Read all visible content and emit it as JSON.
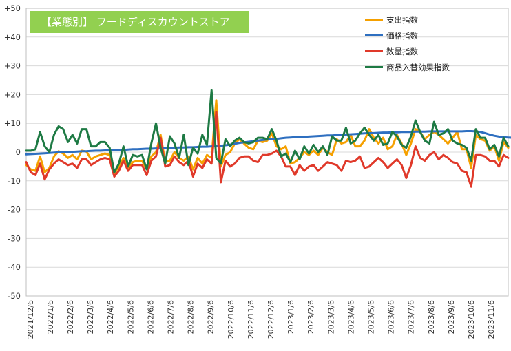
{
  "chart_data": {
    "type": "line",
    "title": "【業態別】 フードディスカウントストア",
    "ylim": [
      -50,
      50
    ],
    "y_ticks": [
      "+50",
      "+40",
      "+30",
      "+20",
      "+10",
      "0",
      "-10",
      "-20",
      "-30",
      "-40",
      "-50"
    ],
    "x_tick_labels": [
      "2021/12/6",
      "2022/1/6",
      "2022/2/6",
      "2022/3/6",
      "2022/4/6",
      "2022/5/6",
      "2022/6/6",
      "2022/7/6",
      "2022/8/6",
      "2022/9/6",
      "2022/10/6",
      "2022/11/6",
      "2022/12/6",
      "2023/1/6",
      "2023/2/6",
      "2023/3/6",
      "2023/4/6",
      "2023/5/6",
      "2023/6/6",
      "2023/7/6",
      "2023/8/6",
      "2023/9/6",
      "2023/10/6",
      "2023/11/6"
    ],
    "grid": "horizontal",
    "legend_position": "top-right",
    "series": [
      {
        "name": "支出指数",
        "color": "#f5a000",
        "values": [
          -4.5,
          -6,
          -6.5,
          -1.5,
          -7,
          -5.5,
          -1.5,
          0.3,
          -0.5,
          -2,
          -1,
          -2.5,
          0.5,
          0.2,
          -2.5,
          -1.5,
          -1,
          -0.5,
          -1,
          -7.5,
          -5,
          -2,
          -5.5,
          -3.5,
          -3,
          -3,
          -6,
          -1.5,
          0,
          6,
          -3.5,
          -3,
          0,
          -2,
          -3,
          -1.5,
          -6,
          -2,
          -4,
          -1,
          -2,
          18,
          -5,
          -1,
          0,
          3,
          4.5,
          3,
          1.5,
          1,
          4,
          3.5,
          4,
          6.5,
          2,
          1,
          2,
          -4,
          -3.5,
          -2,
          0,
          -1,
          0.5,
          -1,
          1.5,
          0,
          -1,
          4.5,
          3,
          3.5,
          6,
          2,
          2,
          4,
          8,
          5,
          3,
          5,
          1,
          2,
          6,
          3,
          -1,
          3,
          8,
          7,
          4.5,
          6,
          7,
          6,
          4.5,
          3,
          5,
          7,
          1,
          1,
          -5.5,
          6,
          4.5,
          4,
          0.5,
          2,
          -3,
          3.5,
          1.5
        ]
      },
      {
        "name": "価格指数",
        "color": "#2e6fc0",
        "values": [
          -0.8,
          -0.7,
          -0.6,
          -0.5,
          -0.4,
          -0.3,
          -0.2,
          -0.1,
          0,
          0.1,
          0.1,
          0.2,
          0.3,
          0.3,
          0.4,
          0.5,
          0.5,
          0.6,
          0.6,
          0.7,
          0.8,
          0.8,
          0.9,
          1,
          1,
          1.1,
          1.2,
          1.2,
          1.3,
          1.3,
          1.4,
          1.5,
          1.5,
          1.6,
          1.6,
          1.7,
          1.7,
          1.8,
          1.9,
          1.9,
          2,
          2,
          2.2,
          2.4,
          2.6,
          2.9,
          3.2,
          3.4,
          3.6,
          3.8,
          4,
          4.2,
          4.4,
          4.5,
          4.6,
          4.8,
          5,
          5.1,
          5.2,
          5.3,
          5.3,
          5.4,
          5.5,
          5.6,
          5.7,
          5.8,
          5.8,
          5.9,
          6,
          6.1,
          6.2,
          6.3,
          6.4,
          6.5,
          6.6,
          6.6,
          6.7,
          6.8,
          6.8,
          6.9,
          6.9,
          7,
          7,
          7,
          7.1,
          7.1,
          7.1,
          7.2,
          7.2,
          7.2,
          7.2,
          7.2,
          7.2,
          7.2,
          7.2,
          7.3,
          7.3,
          7.2,
          7,
          6.6,
          6.1,
          5.7,
          5.4,
          5.2,
          5.1,
          5,
          4.9,
          4.8
        ]
      },
      {
        "name": "数量指数",
        "color": "#e0392a",
        "values": [
          -3.5,
          -7,
          -8,
          -4,
          -9.5,
          -6,
          -4,
          -2.5,
          -3.5,
          -4.5,
          -4,
          -5.5,
          -2.5,
          -2.5,
          -4.5,
          -3.5,
          -2.5,
          -2,
          -2.5,
          -8.5,
          -6.5,
          -3,
          -6.5,
          -4.5,
          -4.5,
          -4.5,
          -8,
          -3,
          -1.5,
          5,
          -5,
          -4.5,
          -1.5,
          -3.5,
          -4.5,
          -3,
          -8.5,
          -4,
          -5.5,
          -2.5,
          -4,
          14,
          -10.5,
          -3,
          -5,
          -4,
          -2,
          -1.5,
          -1.5,
          -3,
          -3.5,
          -1,
          -1,
          -0.5,
          0.5,
          -1.5,
          -5,
          -5,
          -8,
          -4.5,
          -6.5,
          -5,
          -4.5,
          -6.5,
          -5,
          -3.5,
          -4,
          -4.5,
          -6.5,
          -3,
          -3.5,
          -3,
          -1.5,
          -5.5,
          -5,
          -3.5,
          -2,
          -3.5,
          -5.5,
          -4,
          -2.5,
          -4.5,
          -9,
          -4.5,
          2,
          -2,
          -3,
          -1,
          0,
          -2.5,
          -1,
          -2,
          -3.5,
          -4,
          -6.5,
          -7,
          -12,
          -1,
          -1,
          -1.5,
          -3,
          -3,
          -5,
          -1,
          -2
        ]
      },
      {
        "name": "商品入替効果指数",
        "color": "#1e7a44",
        "values": [
          0.5,
          0.5,
          1,
          7,
          2,
          0,
          6,
          9,
          8,
          3.5,
          6,
          3,
          8,
          8,
          2,
          2,
          3.5,
          3.5,
          1.5,
          -7,
          -4,
          2,
          -5,
          -1,
          -1.5,
          -1,
          -6,
          3,
          10,
          1.5,
          -4,
          5.5,
          3,
          -2,
          6,
          -4.5,
          1.5,
          -0.5,
          6,
          2.5,
          21.5,
          -2,
          -4,
          4.5,
          2,
          4,
          5,
          3.5,
          3,
          3.5,
          5,
          5,
          4.5,
          8,
          4,
          -1.5,
          -0.5,
          -3.5,
          0.5,
          -2.5,
          2,
          -0.5,
          2.5,
          0,
          2,
          -1,
          5.5,
          4,
          4,
          8.5,
          3,
          4,
          6.5,
          8.5,
          6,
          4,
          6,
          2.5,
          3,
          7,
          5.5,
          2.5,
          1.5,
          5.5,
          11,
          7,
          4,
          3,
          10.5,
          6,
          6.5,
          8,
          4,
          3,
          2.5,
          1.5,
          -3,
          8,
          5,
          5,
          1,
          2.5,
          -1.5,
          5,
          2
        ]
      }
    ]
  }
}
